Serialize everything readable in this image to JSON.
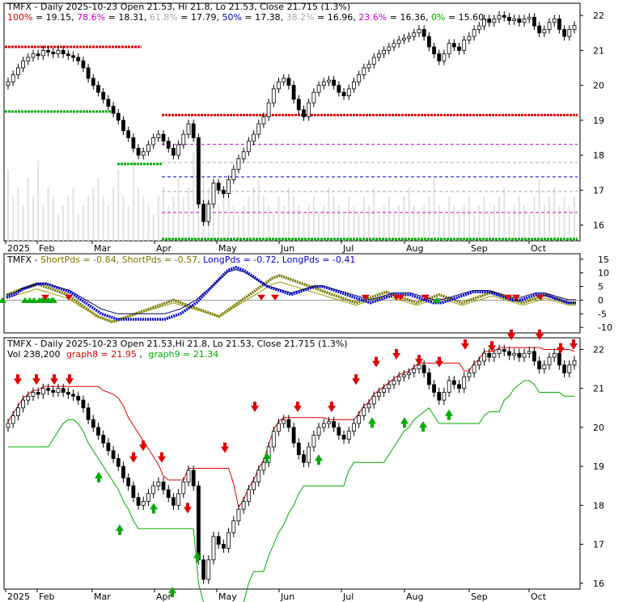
{
  "chart_data": [
    {
      "type": "candlestick",
      "panel": "price",
      "header": {
        "title": "TMFX - Daily 2025-10-23 Open 21.53, Hi 21.8, Lo 21.53, Close 21.715 (1.3%)",
        "fib_levels": [
          {
            "label": "100%",
            "value": "= 19.15",
            "color": "#dd0000"
          },
          {
            "label": "78.6%",
            "value": "= 18.31",
            "color": "#cc00cc"
          },
          {
            "label": "61.8%",
            "value": "= 17.79",
            "color": "#aaaaaa"
          },
          {
            "label": "50%",
            "value": "= 17.38",
            "color": "#0000cc"
          },
          {
            "label": "38.2%",
            "value": "= 16.96",
            "color": "#aaaaaa"
          },
          {
            "label": "23.6%",
            "value": "= 16.36",
            "color": "#cc00cc"
          },
          {
            "label": "0%",
            "value": "= 15.60",
            "color": "#00aa00"
          }
        ]
      },
      "x_labels": [
        "2025",
        "Feb",
        "Mar",
        "Apr",
        "May",
        "Jun",
        "Jul",
        "Aug",
        "Sep",
        "Oct"
      ],
      "y_ticks": [
        "22",
        "21",
        "20",
        "19",
        "18",
        "17",
        "16"
      ],
      "ylim": [
        15.55,
        22.35
      ],
      "support_resistance": [
        19.15,
        21.1,
        17.75,
        15.6
      ],
      "closes": [
        20.1,
        20.3,
        20.5,
        20.7,
        20.8,
        20.9,
        20.85,
        21.0,
        20.95,
        20.9,
        21.0,
        20.9,
        20.85,
        20.8,
        20.7,
        20.5,
        20.2,
        20.0,
        19.8,
        19.6,
        19.4,
        19.2,
        19.0,
        18.7,
        18.5,
        18.2,
        18.0,
        18.1,
        18.3,
        18.5,
        18.6,
        18.4,
        18.2,
        18.0,
        18.3,
        18.6,
        18.9,
        18.5,
        16.6,
        16.1,
        16.6,
        17.2,
        17.0,
        16.9,
        17.3,
        17.6,
        17.9,
        18.1,
        18.4,
        18.6,
        18.9,
        19.1,
        19.5,
        19.9,
        20.1,
        20.2,
        20.0,
        19.6,
        19.3,
        19.1,
        19.5,
        19.8,
        20.0,
        20.1,
        20.15,
        20.0,
        19.8,
        19.7,
        19.9,
        20.1,
        20.3,
        20.5,
        20.6,
        20.8,
        20.9,
        21.0,
        21.1,
        21.2,
        21.3,
        21.35,
        21.4,
        21.5,
        21.6,
        21.4,
        21.1,
        20.9,
        20.7,
        20.9,
        21.2,
        21.1,
        21.0,
        21.3,
        21.4,
        21.6,
        21.7,
        21.9,
        21.8,
        21.9,
        22.0,
        21.95,
        21.85,
        21.9,
        21.8,
        21.9,
        21.95,
        21.7,
        21.5,
        21.6,
        21.8,
        21.9,
        21.6,
        21.4,
        21.6,
        21.715
      ],
      "volume": [
        0.8,
        0.5,
        0.6,
        0.4,
        0.7,
        0.5,
        0.9,
        0.4,
        0.6,
        0.5,
        0.3,
        0.4,
        0.5,
        0.6,
        0.3,
        0.4,
        0.5,
        0.6,
        0.7,
        0.5,
        0.4,
        0.6,
        0.8,
        0.5,
        0.4,
        0.9,
        0.6,
        0.5,
        0.4,
        0.3,
        0.5,
        0.6,
        0.4,
        0.5,
        0.7,
        0.5,
        0.6,
        1.0,
        0.9,
        0.7,
        0.6,
        0.5,
        0.4,
        0.6,
        0.5,
        0.4,
        0.3,
        0.4,
        0.5,
        0.6,
        0.7,
        0.5,
        0.4,
        0.3,
        0.5,
        0.4,
        0.6,
        0.5,
        0.4,
        0.3,
        0.4,
        0.5,
        0.3,
        0.4,
        0.6,
        0.5,
        0.4,
        0.3,
        0.5,
        0.4,
        0.3,
        0.5,
        0.4,
        0.6,
        0.3,
        0.4,
        0.5,
        0.3,
        0.4,
        0.5,
        0.6,
        0.4,
        0.3,
        0.4,
        0.5,
        0.7,
        0.4,
        0.3,
        0.5,
        0.4,
        0.3,
        0.4,
        0.5,
        0.3,
        0.4,
        0.5,
        0.3,
        0.4,
        0.5,
        0.6,
        0.3,
        0.4,
        0.5,
        0.4,
        0.3,
        0.5,
        0.7,
        0.4,
        0.5,
        0.6,
        0.4,
        0.5,
        0.4,
        0.5
      ]
    },
    {
      "type": "line",
      "panel": "oscillator",
      "header": [
        {
          "text": "TMFX - ",
          "color": "#000000"
        },
        {
          "text": "ShortPds = -0.84, ",
          "color": "#777700"
        },
        {
          "text": "ShortPds = -0.57, ",
          "color": "#777700"
        },
        {
          "text": "LongPds = -0.72, ",
          "color": "#0000cc"
        },
        {
          "text": "LongPds = -0.41",
          "color": "#0000cc"
        }
      ],
      "y_ticks": [
        "15",
        "10",
        "5",
        "0",
        "-5",
        "-10"
      ],
      "ylim": [
        -12,
        17
      ],
      "series": [
        {
          "name": "ShortPds",
          "color": "#777700",
          "values": [
            2,
            3,
            4,
            5,
            6,
            5,
            4,
            3,
            2,
            0,
            -2,
            -4,
            -6,
            -7,
            -8,
            -7,
            -6,
            -5,
            -4,
            -3,
            -2,
            -1,
            0,
            -1,
            -2,
            -3,
            -4,
            -5,
            -6,
            -4,
            -2,
            0,
            2,
            4,
            6,
            8,
            9,
            8,
            7,
            6,
            5,
            4,
            3,
            2,
            1,
            0,
            -1,
            0,
            1,
            2,
            3,
            2,
            1,
            0,
            -1,
            0,
            1,
            2,
            1,
            0,
            -1,
            0,
            1,
            2,
            3,
            2,
            1,
            0,
            -1,
            0,
            1,
            2,
            1,
            0,
            -1,
            -1
          ]
        },
        {
          "name": "LongPds",
          "color": "#0000cc",
          "values": [
            1,
            2,
            4,
            5,
            6,
            6,
            5,
            4,
            3,
            1,
            -1,
            -3,
            -5,
            -6,
            -7,
            -7,
            -7,
            -7,
            -7,
            -7,
            -7,
            -6,
            -5,
            -3,
            -1,
            2,
            5,
            8,
            11,
            12,
            11,
            9,
            7,
            5,
            4,
            3,
            2,
            3,
            4,
            5,
            5,
            4,
            3,
            2,
            1,
            0,
            -1,
            0,
            1,
            2,
            2,
            2,
            1,
            0,
            -1,
            -1,
            0,
            1,
            2,
            3,
            3,
            3,
            2,
            1,
            0,
            0,
            1,
            2,
            2,
            1,
            0,
            -1,
            -1
          ]
        }
      ]
    },
    {
      "type": "candlestick",
      "panel": "price2",
      "header": {
        "title": "TMFX - Daily 2025-10-23 Open 21.53,Hi 21.8, Lo 21.53, Close 21.715 (1.3%)",
        "vol": "Vol 238,200",
        "graph8": "graph8 = 21.95",
        "graph9": "graph9 = 21.34"
      },
      "y_ticks": [
        "22",
        "21",
        "20",
        "19",
        "18",
        "17",
        "16"
      ],
      "ylim": [
        15.85,
        22.3
      ],
      "x_labels": [
        "2025",
        "Feb",
        "Mar",
        "Apr",
        "May",
        "Jun",
        "Jul",
        "Aug",
        "Sep",
        "Oct"
      ]
    }
  ]
}
